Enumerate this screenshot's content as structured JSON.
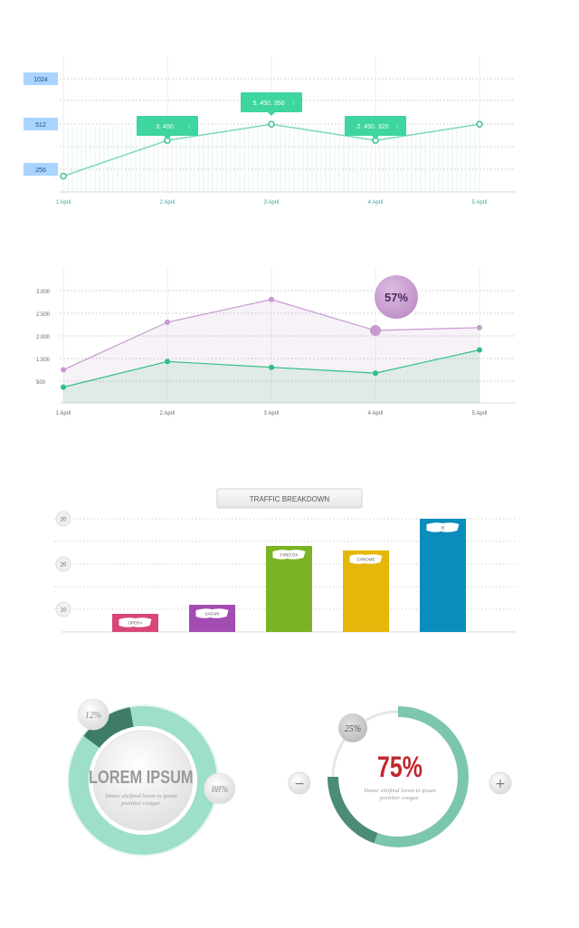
{
  "chart_data": [
    {
      "type": "line",
      "categories": [
        "1 April",
        "2 April",
        "3 April",
        "4 April",
        "5 April"
      ],
      "values": [
        120,
        390,
        512,
        390,
        512
      ],
      "y_tick_labels": [
        "1024",
        "512",
        "256"
      ],
      "tooltips": [
        {
          "x": "2 April",
          "text": "3. 450"
        },
        {
          "x": "3 April",
          "text": "5. 450. 350"
        },
        {
          "x": "4 April",
          "text": "2. 450. 320"
        }
      ],
      "grid": true
    },
    {
      "type": "area",
      "categories": [
        "1 April",
        "2 April",
        "3 April",
        "4 April",
        "5 April"
      ],
      "ylim": [
        0,
        3000
      ],
      "y_tick_labels": [
        "3.000",
        "2.500",
        "2.000",
        "1.500",
        "500"
      ],
      "series": [
        {
          "values": [
            800,
            1950,
            2500,
            1750,
            1820
          ]
        },
        {
          "values": [
            380,
            1000,
            860,
            720,
            1280
          ]
        }
      ],
      "callout": {
        "x": "4 April",
        "text": "57%"
      },
      "grid": true
    },
    {
      "type": "bar",
      "title": "TRAFFIC BREAKDOWN",
      "categories": [
        "OPERA",
        "SAFARI",
        "FIREFOX",
        "CHROME",
        "IE"
      ],
      "values": [
        4,
        6,
        19,
        18,
        25
      ],
      "y_tick_labels": [
        "20",
        "20",
        "10"
      ],
      "ylim": [
        0,
        25
      ],
      "grid": true
    },
    {
      "type": "pie",
      "title": "LOREM IPSUM",
      "subtitle": "Donec eleifend lorem in ipsum porttitor congue.",
      "slices": [
        {
          "label": "12%",
          "value": 12
        },
        {
          "label": "88%",
          "value": 88
        }
      ]
    },
    {
      "type": "pie",
      "title": "75%",
      "subtitle": "Donec eleifend lorem in ipsum porttitor congue.",
      "slices": [
        {
          "label": "75%",
          "value": 75
        },
        {
          "label": "25%",
          "value": 25
        }
      ]
    }
  ],
  "colors": {
    "teal": "#3ed59f",
    "teal_line": "#7fd9b8",
    "pink": "#c79ad0",
    "green": "#2fbf84",
    "axis_label_bg": "#a8d4ff",
    "red": "#c0272d",
    "opera": "#d9477a",
    "safari": "#a24bb1",
    "firefox": "#7cb324",
    "chrome": "#e6b70b",
    "ie": "#0a8cbd",
    "donut_dark": "#3f7c67",
    "donut_light": "#9ee0c7"
  },
  "controls": {
    "minus_label": "−",
    "plus_label": "+"
  }
}
